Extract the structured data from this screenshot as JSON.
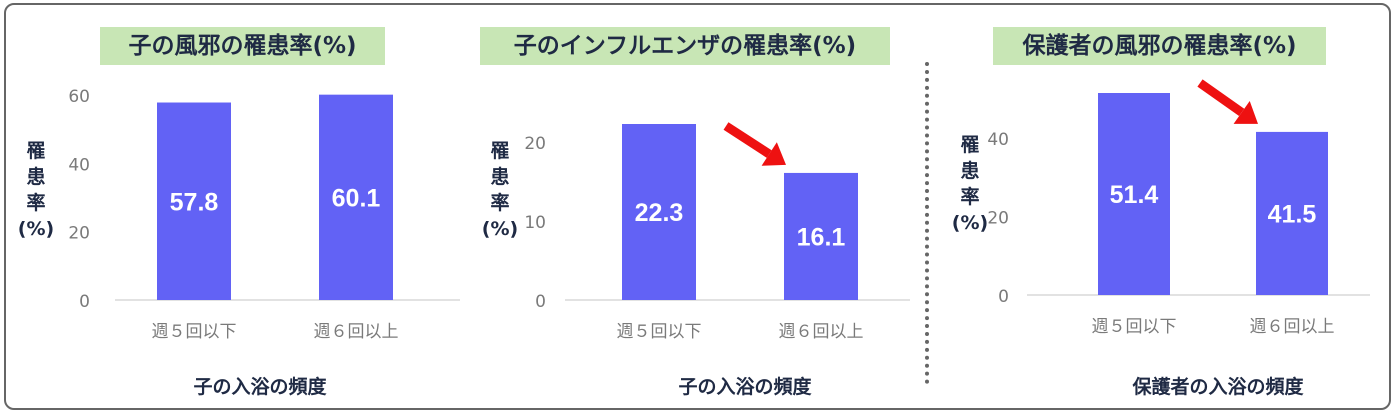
{
  "colors": {
    "bar": "#6262f5",
    "title_bg": "#c8e6b5",
    "title_text": "#1f2a44",
    "axis_text": "#7a7a7a",
    "arrow": "#ee1111"
  },
  "chart_data": [
    {
      "type": "bar",
      "title": "子の風邪の罹患率(%)",
      "ylabel_chars": [
        "罹",
        "患",
        "率",
        "(%)"
      ],
      "xlabel": "子の入浴の頻度",
      "categories": [
        "週５回以下",
        "週６回以上"
      ],
      "values": [
        57.8,
        60.1
      ],
      "value_labels": [
        "57.8",
        "60.1"
      ],
      "ylim": [
        0,
        60
      ],
      "yticks": [
        0,
        20,
        40,
        60
      ],
      "arrow": false
    },
    {
      "type": "bar",
      "title": "子のインフルエンザの罹患率(%)",
      "ylabel_chars": [
        "罹",
        "患",
        "率",
        "(%)"
      ],
      "xlabel": "子の入浴の頻度",
      "categories": [
        "週５回以下",
        "週６回以上"
      ],
      "values": [
        22.3,
        16.1
      ],
      "value_labels": [
        "22.3",
        "16.1"
      ],
      "ylim": [
        0,
        25
      ],
      "yticks": [
        0,
        10,
        20
      ],
      "arrow": true
    },
    {
      "type": "bar",
      "title": "保護者の風邪の罹患率(%)",
      "ylabel_chars": [
        "罹",
        "患",
        "率",
        "(%)"
      ],
      "xlabel": "保護者の入浴の頻度",
      "categories": [
        "週５回以下",
        "週６回以上"
      ],
      "values": [
        51.4,
        41.5
      ],
      "value_labels": [
        "51.4",
        "41.5"
      ],
      "ylim": [
        0,
        55
      ],
      "yticks": [
        0,
        20,
        40
      ],
      "arrow": true
    }
  ]
}
